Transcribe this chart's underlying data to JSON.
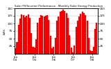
{
  "title": "Solar PV/Inverter Performance - Monthly Solar Energy Production",
  "ylabel": "kWh",
  "bar_color": "#FF0000",
  "edge_color": "#CC0000",
  "background_color": "#FFFFFF",
  "grid_color": "#888888",
  "values": [
    18,
    38,
    95,
    115,
    130,
    128,
    120,
    125,
    130,
    118,
    68,
    22,
    20,
    48,
    102,
    118,
    128,
    125,
    122,
    126,
    128,
    112,
    58,
    18,
    22,
    52,
    108,
    122,
    138,
    142,
    145,
    142,
    135,
    118,
    62,
    20,
    5,
    28,
    88,
    108,
    122,
    132,
    138,
    135,
    128,
    108,
    52,
    12,
    8,
    22,
    82,
    102
  ],
  "ylim": [
    0,
    150
  ],
  "ytick_positions": [
    25,
    50,
    75,
    100,
    125,
    150
  ],
  "ytick_labels": [
    "25",
    "50",
    "75",
    "100",
    "125",
    "150"
  ],
  "year_tick_positions": [
    0,
    12,
    24,
    36,
    48
  ],
  "year_tick_labels": [
    "Jan\n'04",
    "Jan\n'05",
    "Jan\n'06",
    "Jan\n'07",
    "Jan\n'08"
  ]
}
